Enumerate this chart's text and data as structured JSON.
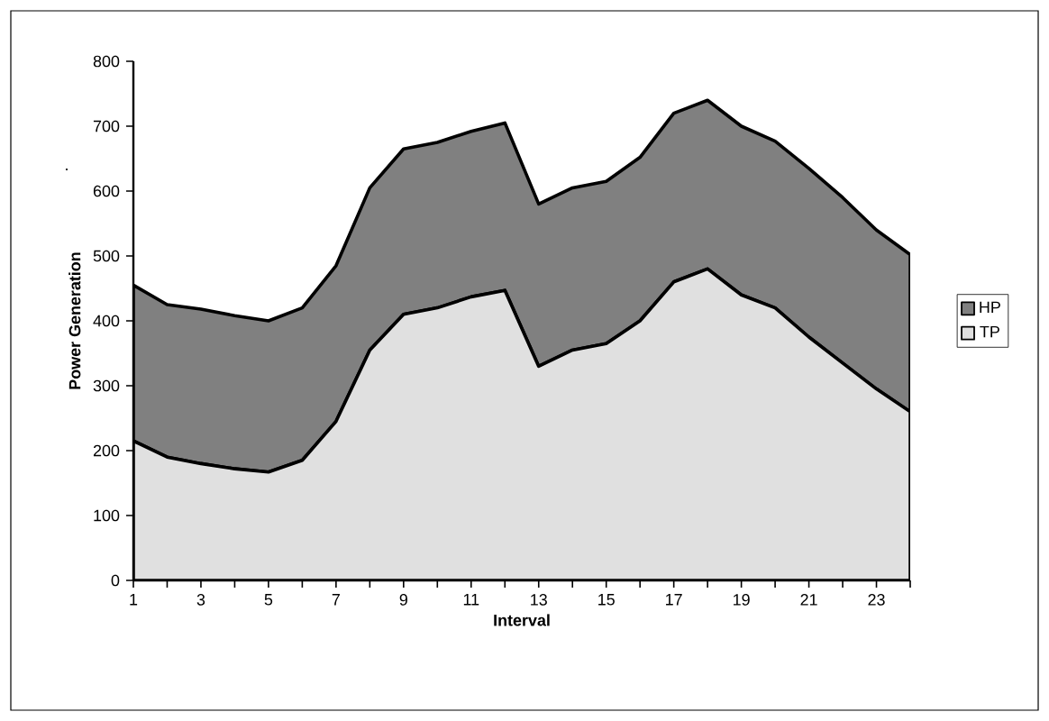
{
  "chart_data": {
    "type": "area",
    "stacked": true,
    "xlabel": "Interval",
    "ylabel": "Power Generation",
    "categories": [
      "1",
      null,
      "3",
      null,
      "5",
      null,
      "7",
      null,
      "9",
      null,
      "11",
      null,
      "13",
      null,
      "15",
      null,
      "17",
      null,
      "19",
      null,
      "21",
      null,
      "23",
      null
    ],
    "series": [
      {
        "name": "TP",
        "color": "#e0e0e0",
        "values": [
          215,
          190,
          180,
          172,
          167,
          185,
          245,
          355,
          410,
          420,
          437,
          447,
          330,
          355,
          365,
          400,
          460,
          480,
          440,
          420,
          375,
          335,
          295,
          260
        ]
      },
      {
        "name": "HP",
        "color": "#808080",
        "values": [
          240,
          235,
          238,
          236,
          233,
          235,
          240,
          250,
          255,
          255,
          255,
          258,
          250,
          250,
          250,
          252,
          260,
          260,
          260,
          257,
          260,
          255,
          245,
          242
        ]
      }
    ],
    "ylim": [
      0,
      800
    ],
    "yticks": [
      0,
      100,
      200,
      300,
      400,
      500,
      600,
      700,
      800
    ],
    "legend": "right",
    "grid": false,
    "line_style": "solid",
    "annotations": [
      "."
    ]
  }
}
